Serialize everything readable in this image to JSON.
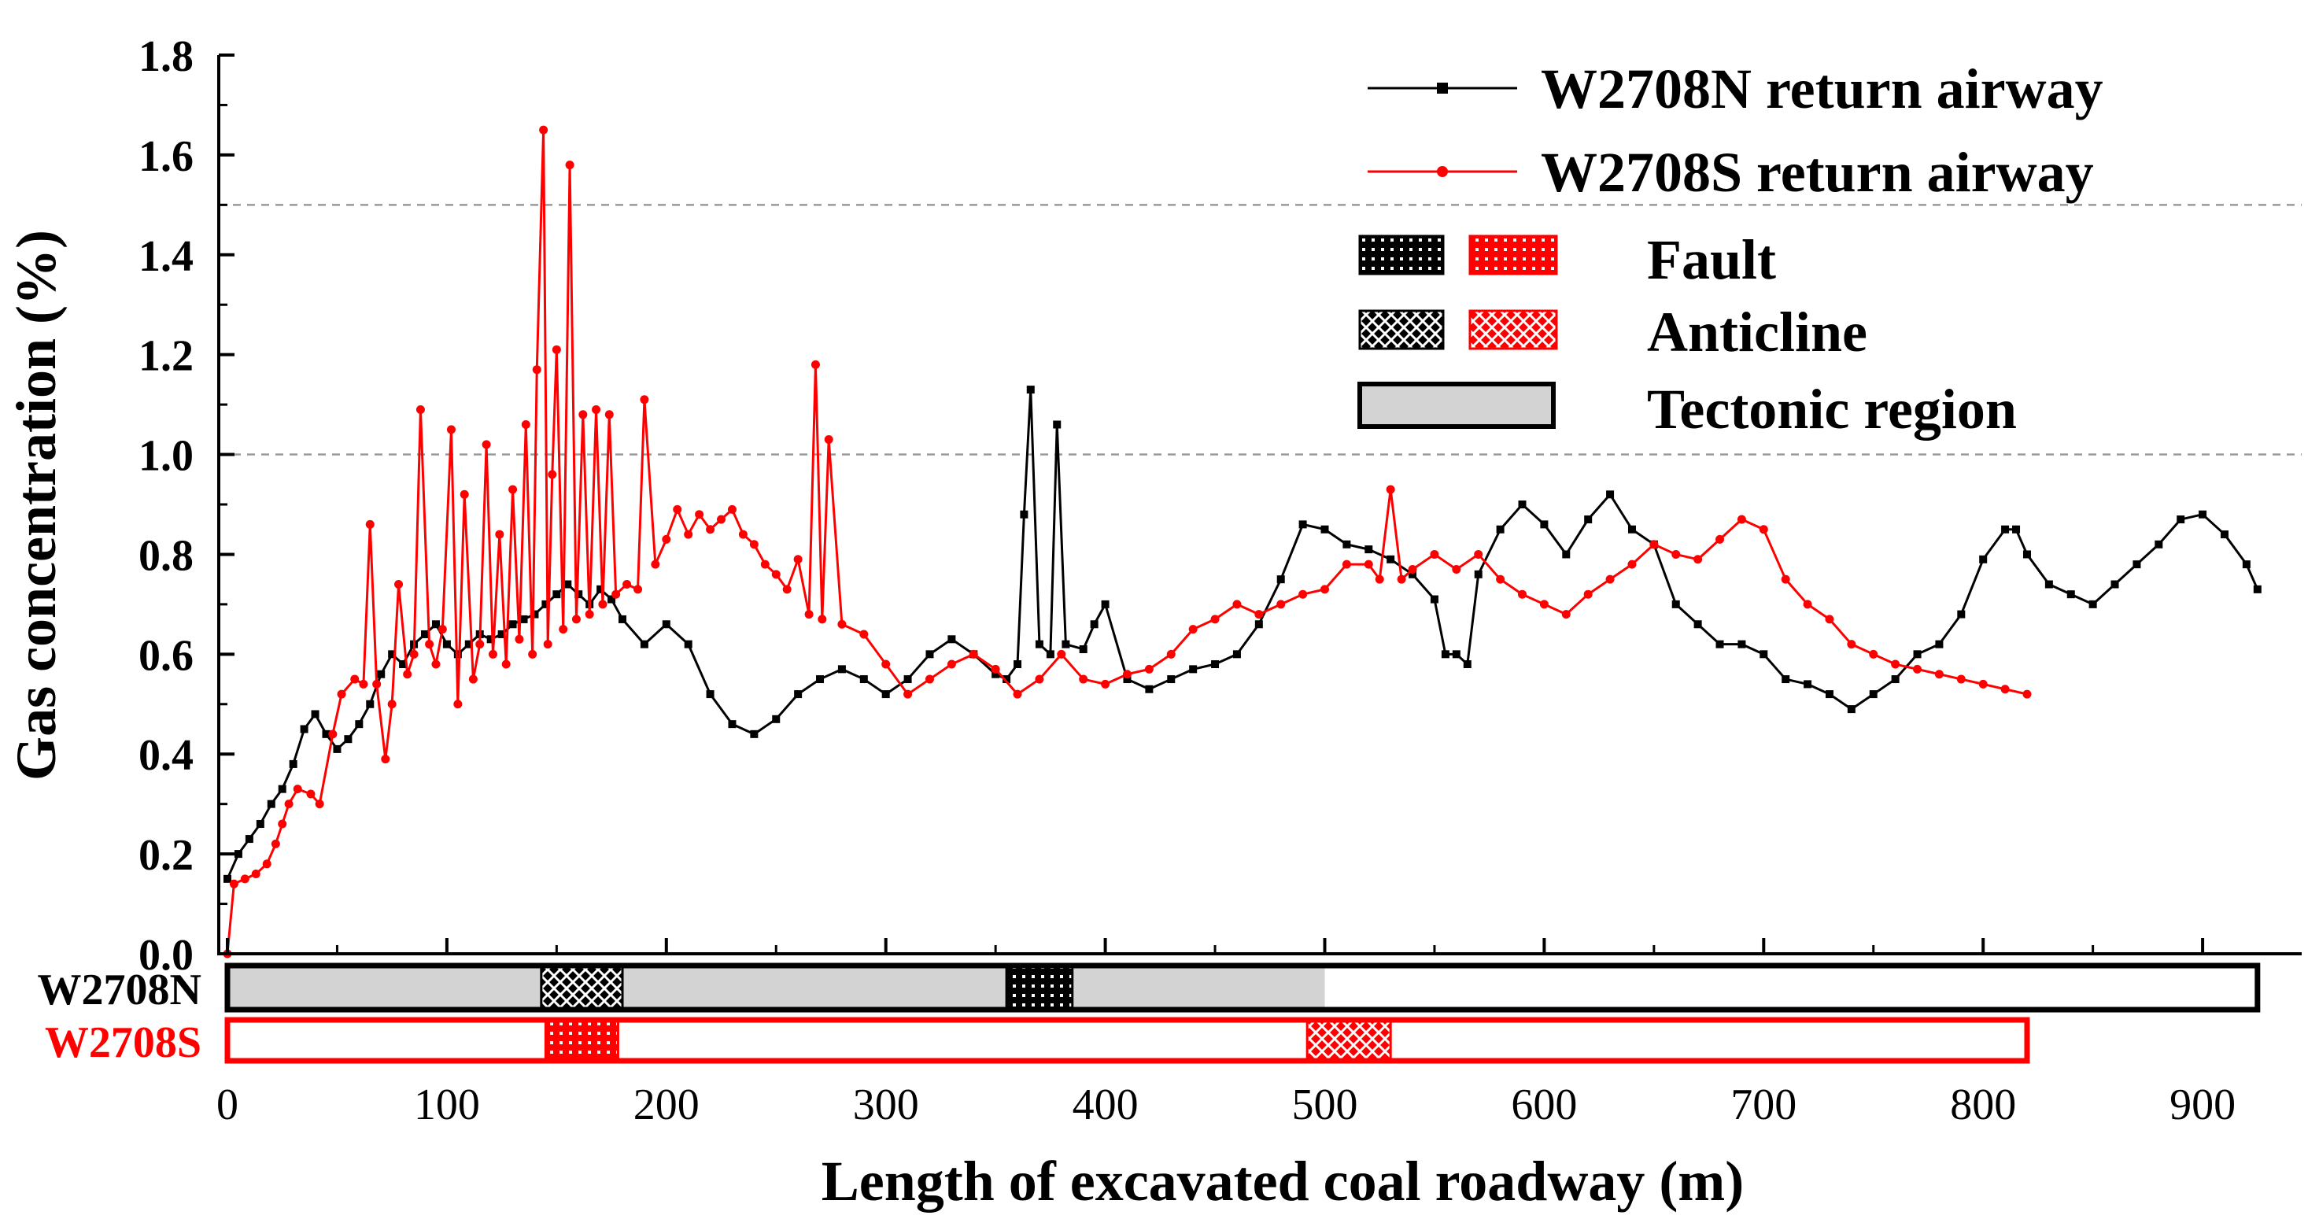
{
  "chart_data": {
    "type": "line",
    "title": "",
    "xlabel": "Length of excavated coal roadway (m)",
    "ylabel": "Gas concentration (%)",
    "xlim": [
      0,
      950
    ],
    "ylim": [
      0,
      1.8
    ],
    "x_ticks": [
      0,
      100,
      200,
      300,
      400,
      500,
      600,
      700,
      800,
      900
    ],
    "x_tick_labels": [
      "0",
      "100",
      "200",
      "300",
      "400",
      "500",
      "600",
      "700",
      "800",
      "900"
    ],
    "y_ticks": [
      0.0,
      0.2,
      0.4,
      0.6,
      0.8,
      1.0,
      1.2,
      1.4,
      1.6,
      1.8
    ],
    "y_tick_labels": [
      "0.0",
      "0.2",
      "0.4",
      "0.6",
      "0.8",
      "1.0",
      "1.2",
      "1.4",
      "1.6",
      "1.8"
    ],
    "reference_lines": [
      1.0,
      1.5
    ],
    "legend_position": "top-right",
    "series": [
      {
        "name": "W2708N return airway",
        "color": "#000000",
        "marker": "square",
        "x": [
          0,
          5,
          10,
          15,
          20,
          25,
          30,
          35,
          40,
          45,
          50,
          55,
          60,
          65,
          70,
          75,
          80,
          85,
          90,
          95,
          100,
          105,
          110,
          115,
          120,
          125,
          130,
          135,
          140,
          145,
          150,
          155,
          160,
          165,
          170,
          175,
          180,
          190,
          200,
          210,
          220,
          230,
          240,
          250,
          260,
          270,
          280,
          290,
          300,
          310,
          320,
          330,
          340,
          350,
          355,
          360,
          363,
          366,
          370,
          375,
          378,
          382,
          390,
          395,
          400,
          410,
          420,
          430,
          440,
          450,
          460,
          470,
          480,
          490,
          500,
          510,
          520,
          530,
          540,
          550,
          555,
          560,
          565,
          570,
          580,
          590,
          600,
          610,
          620,
          630,
          640,
          650,
          660,
          670,
          680,
          690,
          700,
          710,
          720,
          730,
          740,
          750,
          760,
          770,
          780,
          790,
          800,
          810,
          815,
          820,
          830,
          840,
          850,
          860,
          870,
          880,
          890,
          900,
          910,
          920,
          925
        ],
        "y": [
          0.15,
          0.2,
          0.23,
          0.26,
          0.3,
          0.33,
          0.38,
          0.45,
          0.48,
          0.44,
          0.41,
          0.43,
          0.46,
          0.5,
          0.56,
          0.6,
          0.58,
          0.62,
          0.64,
          0.66,
          0.62,
          0.6,
          0.62,
          0.64,
          0.63,
          0.64,
          0.66,
          0.67,
          0.68,
          0.7,
          0.72,
          0.74,
          0.72,
          0.7,
          0.73,
          0.71,
          0.67,
          0.62,
          0.66,
          0.62,
          0.52,
          0.46,
          0.44,
          0.47,
          0.52,
          0.55,
          0.57,
          0.55,
          0.52,
          0.55,
          0.6,
          0.63,
          0.6,
          0.56,
          0.55,
          0.58,
          0.88,
          1.13,
          0.62,
          0.6,
          1.06,
          0.62,
          0.61,
          0.66,
          0.7,
          0.55,
          0.53,
          0.55,
          0.57,
          0.58,
          0.6,
          0.66,
          0.75,
          0.86,
          0.85,
          0.82,
          0.81,
          0.79,
          0.76,
          0.71,
          0.6,
          0.6,
          0.58,
          0.76,
          0.85,
          0.9,
          0.86,
          0.8,
          0.87,
          0.92,
          0.85,
          0.82,
          0.7,
          0.66,
          0.62,
          0.62,
          0.6,
          0.55,
          0.54,
          0.52,
          0.49,
          0.52,
          0.55,
          0.6,
          0.62,
          0.68,
          0.79,
          0.85,
          0.85,
          0.8,
          0.74,
          0.72,
          0.7,
          0.74,
          0.78,
          0.82,
          0.87,
          0.88,
          0.84,
          0.78,
          0.73
        ]
      },
      {
        "name": "W2708S return airway",
        "color": "#ff0000",
        "marker": "circle",
        "x": [
          0,
          3,
          8,
          13,
          18,
          22,
          25,
          28,
          32,
          38,
          42,
          48,
          52,
          58,
          62,
          65,
          68,
          72,
          75,
          78,
          82,
          85,
          88,
          92,
          95,
          98,
          102,
          105,
          108,
          112,
          115,
          118,
          121,
          124,
          127,
          130,
          133,
          136,
          139,
          141,
          144,
          146,
          148,
          150,
          153,
          156,
          159,
          162,
          165,
          168,
          171,
          174,
          177,
          182,
          187,
          190,
          195,
          200,
          205,
          210,
          215,
          220,
          225,
          230,
          235,
          240,
          245,
          250,
          255,
          260,
          265,
          268,
          271,
          274,
          280,
          290,
          300,
          310,
          320,
          330,
          340,
          350,
          360,
          370,
          380,
          390,
          400,
          410,
          420,
          430,
          440,
          450,
          460,
          470,
          480,
          490,
          500,
          510,
          520,
          525,
          530,
          535,
          540,
          550,
          560,
          570,
          580,
          590,
          600,
          610,
          620,
          630,
          640,
          650,
          660,
          670,
          680,
          690,
          700,
          710,
          720,
          730,
          740,
          750,
          760,
          770,
          780,
          790,
          800,
          810,
          820
        ],
        "y": [
          0.0,
          0.14,
          0.15,
          0.16,
          0.18,
          0.22,
          0.26,
          0.3,
          0.33,
          0.32,
          0.3,
          0.44,
          0.52,
          0.55,
          0.54,
          0.86,
          0.54,
          0.39,
          0.5,
          0.74,
          0.56,
          0.6,
          1.09,
          0.62,
          0.58,
          0.65,
          1.05,
          0.5,
          0.92,
          0.55,
          0.62,
          1.02,
          0.6,
          0.84,
          0.58,
          0.93,
          0.63,
          1.06,
          0.6,
          1.17,
          1.65,
          0.62,
          0.96,
          1.21,
          0.65,
          1.58,
          0.67,
          1.08,
          0.68,
          1.09,
          0.7,
          1.08,
          0.72,
          0.74,
          0.73,
          1.11,
          0.78,
          0.83,
          0.89,
          0.84,
          0.88,
          0.85,
          0.87,
          0.89,
          0.84,
          0.82,
          0.78,
          0.76,
          0.73,
          0.79,
          0.68,
          1.18,
          0.67,
          1.03,
          0.66,
          0.64,
          0.58,
          0.52,
          0.55,
          0.58,
          0.6,
          0.57,
          0.52,
          0.55,
          0.6,
          0.55,
          0.54,
          0.56,
          0.57,
          0.6,
          0.65,
          0.67,
          0.7,
          0.68,
          0.7,
          0.72,
          0.73,
          0.78,
          0.78,
          0.75,
          0.93,
          0.75,
          0.77,
          0.8,
          0.77,
          0.8,
          0.75,
          0.72,
          0.7,
          0.68,
          0.72,
          0.75,
          0.78,
          0.82,
          0.8,
          0.79,
          0.83,
          0.87,
          0.85,
          0.75,
          0.7,
          0.67,
          0.62,
          0.6,
          0.58,
          0.57,
          0.56,
          0.55,
          0.54,
          0.53,
          0.52
        ]
      }
    ],
    "structures": [
      {
        "label": "W2708N",
        "label_color": "#000000",
        "frame_color": "#000000",
        "extent": [
          0,
          925
        ],
        "segments": [
          {
            "from": 0,
            "to": 500,
            "kind": "Tectonic region"
          },
          {
            "from": 143,
            "to": 180,
            "kind": "Anticline"
          },
          {
            "from": 355,
            "to": 385,
            "kind": "Fault"
          }
        ]
      },
      {
        "label": "W2708S",
        "label_color": "#ff0000",
        "frame_color": "#ff0000",
        "extent": [
          0,
          820
        ],
        "segments": [
          {
            "from": 145,
            "to": 178,
            "kind": "Fault"
          },
          {
            "from": 492,
            "to": 530,
            "kind": "Anticline"
          }
        ]
      }
    ],
    "legend": {
      "fault_label": "Fault",
      "anticline_label": "Anticline",
      "tectonic_label": "Tectonic region"
    }
  }
}
